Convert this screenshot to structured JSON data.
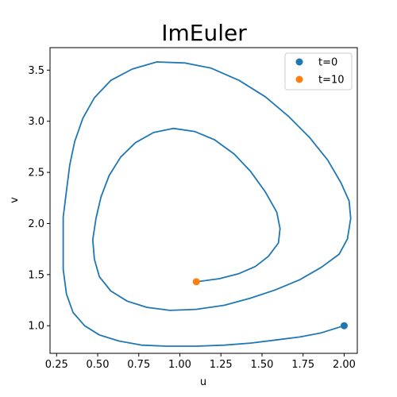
{
  "chart_data": {
    "type": "line",
    "title": "ImEuler",
    "xlabel": "u",
    "ylabel": "v",
    "xlim": [
      0.21,
      2.08
    ],
    "ylim": [
      0.73,
      3.72
    ],
    "xticks": [
      0.25,
      0.5,
      0.75,
      1.0,
      1.25,
      1.5,
      1.75,
      2.0
    ],
    "xtick_labels": [
      "0.25",
      "0.50",
      "0.75",
      "1.00",
      "1.25",
      "1.50",
      "1.75",
      "2.00"
    ],
    "yticks": [
      1.0,
      1.5,
      2.0,
      2.5,
      3.0,
      3.5
    ],
    "ytick_labels": [
      "1.0",
      "1.5",
      "2.0",
      "2.5",
      "3.0",
      "3.5"
    ],
    "grid": false,
    "legend_position": "top-right",
    "colors": {
      "line": "#1f77b4",
      "start": "#1f77b4",
      "end": "#ff7f0e"
    },
    "series": [
      {
        "values": [
          [
            2.0,
            1.0
          ],
          [
            1.86,
            0.93
          ],
          [
            1.73,
            0.89
          ],
          [
            1.58,
            0.86
          ],
          [
            1.43,
            0.83
          ],
          [
            1.27,
            0.81
          ],
          [
            1.1,
            0.8
          ],
          [
            0.92,
            0.8
          ],
          [
            0.77,
            0.81
          ],
          [
            0.63,
            0.85
          ],
          [
            0.51,
            0.91
          ],
          [
            0.42,
            1.0
          ],
          [
            0.35,
            1.13
          ],
          [
            0.31,
            1.31
          ],
          [
            0.29,
            1.55
          ],
          [
            0.29,
            1.8
          ],
          [
            0.29,
            2.06
          ],
          [
            0.31,
            2.32
          ],
          [
            0.33,
            2.57
          ],
          [
            0.36,
            2.8
          ],
          [
            0.41,
            3.03
          ],
          [
            0.48,
            3.23
          ],
          [
            0.58,
            3.4
          ],
          [
            0.71,
            3.51
          ],
          [
            0.86,
            3.58
          ],
          [
            1.03,
            3.57
          ],
          [
            1.19,
            3.52
          ],
          [
            1.36,
            3.4
          ],
          [
            1.52,
            3.24
          ],
          [
            1.66,
            3.05
          ],
          [
            1.79,
            2.84
          ],
          [
            1.9,
            2.62
          ],
          [
            1.98,
            2.4
          ],
          [
            2.03,
            2.22
          ],
          [
            2.04,
            2.05
          ],
          [
            2.02,
            1.85
          ],
          [
            1.97,
            1.7
          ],
          [
            1.86,
            1.57
          ],
          [
            1.73,
            1.45
          ],
          [
            1.58,
            1.35
          ],
          [
            1.43,
            1.27
          ],
          [
            1.27,
            1.2
          ],
          [
            1.1,
            1.16
          ],
          [
            0.94,
            1.15
          ],
          [
            0.8,
            1.18
          ],
          [
            0.68,
            1.24
          ],
          [
            0.58,
            1.34
          ],
          [
            0.51,
            1.48
          ],
          [
            0.48,
            1.65
          ],
          [
            0.47,
            1.84
          ],
          [
            0.49,
            2.05
          ],
          [
            0.52,
            2.26
          ],
          [
            0.57,
            2.47
          ],
          [
            0.64,
            2.65
          ],
          [
            0.73,
            2.79
          ],
          [
            0.84,
            2.89
          ],
          [
            0.96,
            2.93
          ],
          [
            1.09,
            2.9
          ],
          [
            1.21,
            2.82
          ],
          [
            1.33,
            2.68
          ],
          [
            1.43,
            2.51
          ],
          [
            1.52,
            2.31
          ],
          [
            1.59,
            2.11
          ],
          [
            1.61,
            1.95
          ],
          [
            1.6,
            1.81
          ],
          [
            1.54,
            1.68
          ],
          [
            1.46,
            1.58
          ],
          [
            1.36,
            1.51
          ],
          [
            1.24,
            1.46
          ],
          [
            1.1,
            1.43
          ]
        ]
      }
    ],
    "markers": [
      {
        "label": "t=0",
        "x": 2.0,
        "y": 1.0,
        "color": "#1f77b4"
      },
      {
        "label": "t=10",
        "x": 1.1,
        "y": 1.43,
        "color": "#ff7f0e"
      }
    ]
  }
}
